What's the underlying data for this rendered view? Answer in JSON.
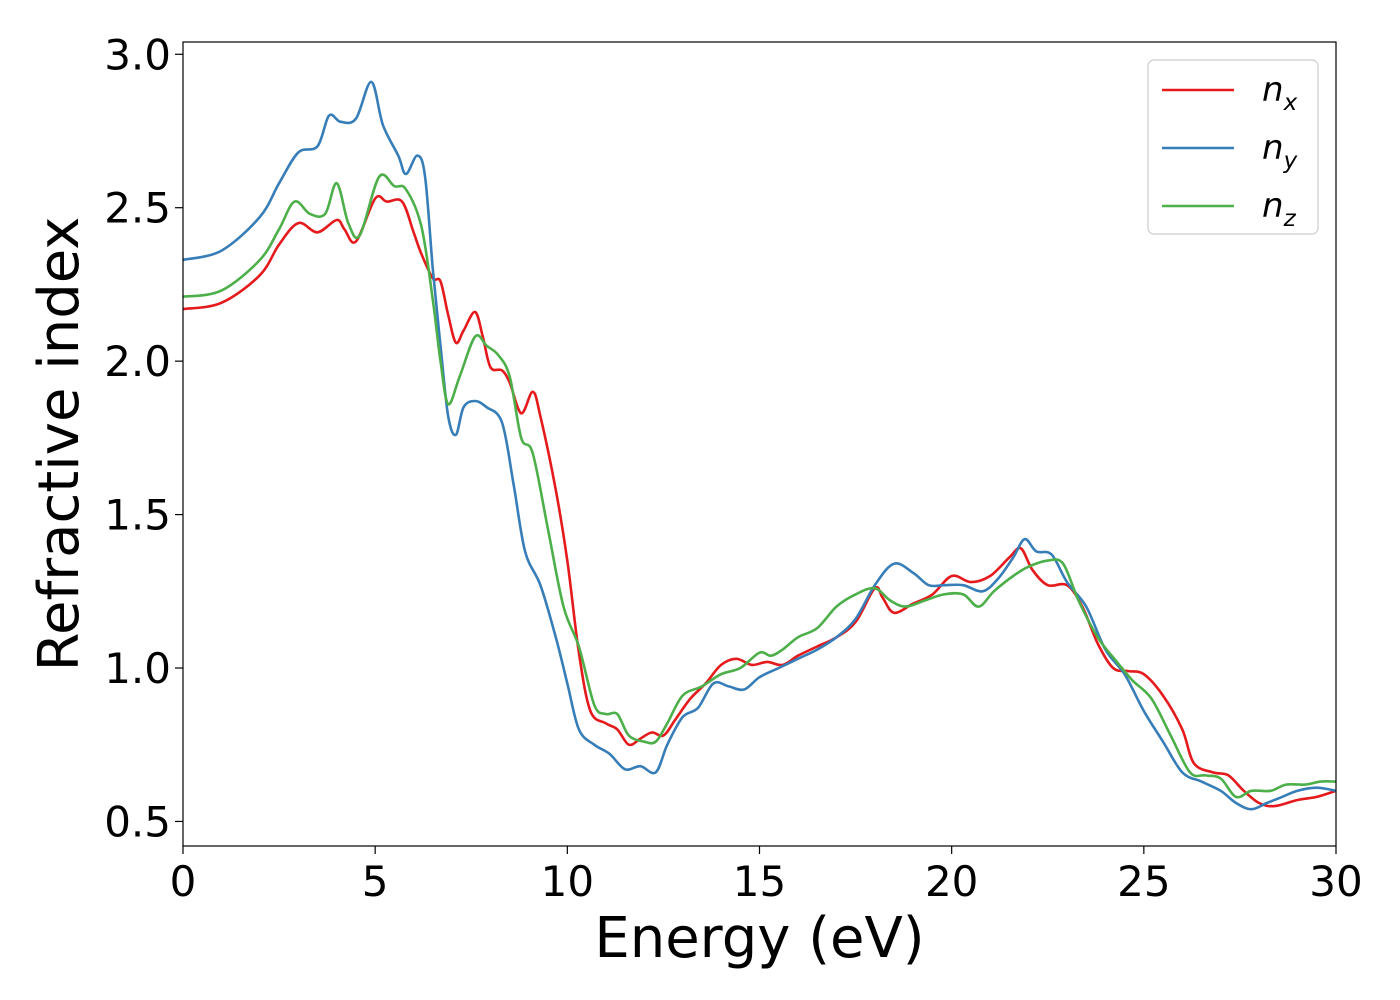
{
  "chart_data": {
    "type": "line",
    "xlabel": "Energy (eV)",
    "ylabel": "Refractive index",
    "xlim": [
      0,
      30
    ],
    "ylim": [
      0.42,
      3.04
    ],
    "xticks": [
      0,
      5,
      10,
      15,
      20,
      25,
      30
    ],
    "xtick_labels": [
      "0",
      "5",
      "10",
      "15",
      "20",
      "25",
      "30"
    ],
    "yticks": [
      0.5,
      1.0,
      1.5,
      2.0,
      2.5,
      3.0
    ],
    "ytick_labels": [
      "0.5",
      "1.0",
      "1.5",
      "2.0",
      "2.5",
      "3.0"
    ],
    "grid": false,
    "legend_position": "top-right",
    "series": [
      {
        "name": "n",
        "subscript": "x",
        "color": "#e41a1c",
        "points": [
          [
            0,
            2.17
          ],
          [
            1,
            2.19
          ],
          [
            2,
            2.28
          ],
          [
            2.5,
            2.38
          ],
          [
            3,
            2.45
          ],
          [
            3.5,
            2.42
          ],
          [
            4,
            2.46
          ],
          [
            4.2,
            2.43
          ],
          [
            4.5,
            2.39
          ],
          [
            5,
            2.53
          ],
          [
            5.3,
            2.52
          ],
          [
            5.7,
            2.52
          ],
          [
            6,
            2.42
          ],
          [
            6.2,
            2.35
          ],
          [
            6.5,
            2.27
          ],
          [
            6.7,
            2.26
          ],
          [
            6.9,
            2.15
          ],
          [
            7.1,
            2.06
          ],
          [
            7.3,
            2.1
          ],
          [
            7.6,
            2.16
          ],
          [
            7.8,
            2.08
          ],
          [
            8,
            1.98
          ],
          [
            8.3,
            1.97
          ],
          [
            8.5,
            1.93
          ],
          [
            8.8,
            1.83
          ],
          [
            9.1,
            1.9
          ],
          [
            9.3,
            1.82
          ],
          [
            9.7,
            1.58
          ],
          [
            10,
            1.35
          ],
          [
            10.3,
            1.05
          ],
          [
            10.6,
            0.86
          ],
          [
            11,
            0.82
          ],
          [
            11.3,
            0.8
          ],
          [
            11.6,
            0.75
          ],
          [
            11.9,
            0.77
          ],
          [
            12.2,
            0.79
          ],
          [
            12.5,
            0.78
          ],
          [
            12.8,
            0.83
          ],
          [
            13.2,
            0.9
          ],
          [
            13.6,
            0.95
          ],
          [
            14,
            1.01
          ],
          [
            14.4,
            1.03
          ],
          [
            14.8,
            1.01
          ],
          [
            15.2,
            1.02
          ],
          [
            15.6,
            1.01
          ],
          [
            16,
            1.04
          ],
          [
            16.5,
            1.07
          ],
          [
            17,
            1.1
          ],
          [
            17.5,
            1.15
          ],
          [
            18,
            1.26
          ],
          [
            18.2,
            1.23
          ],
          [
            18.5,
            1.18
          ],
          [
            19,
            1.21
          ],
          [
            19.5,
            1.24
          ],
          [
            20,
            1.3
          ],
          [
            20.5,
            1.28
          ],
          [
            21,
            1.3
          ],
          [
            21.5,
            1.36
          ],
          [
            21.8,
            1.39
          ],
          [
            22.1,
            1.32
          ],
          [
            22.5,
            1.27
          ],
          [
            23,
            1.27
          ],
          [
            23.4,
            1.2
          ],
          [
            23.8,
            1.08
          ],
          [
            24.2,
            1
          ],
          [
            24.6,
            0.99
          ],
          [
            25,
            0.98
          ],
          [
            25.5,
            0.91
          ],
          [
            26,
            0.8
          ],
          [
            26.3,
            0.69
          ],
          [
            26.8,
            0.66
          ],
          [
            27.2,
            0.65
          ],
          [
            27.6,
            0.6
          ],
          [
            28,
            0.56
          ],
          [
            28.4,
            0.55
          ],
          [
            29,
            0.57
          ],
          [
            29.5,
            0.58
          ],
          [
            30,
            0.6
          ]
        ]
      },
      {
        "name": "n",
        "subscript": "y",
        "color": "#377eb8",
        "points": [
          [
            0,
            2.33
          ],
          [
            1,
            2.36
          ],
          [
            2,
            2.47
          ],
          [
            2.5,
            2.58
          ],
          [
            3,
            2.68
          ],
          [
            3.5,
            2.7
          ],
          [
            3.8,
            2.8
          ],
          [
            4.1,
            2.78
          ],
          [
            4.5,
            2.79
          ],
          [
            4.9,
            2.91
          ],
          [
            5.2,
            2.77
          ],
          [
            5.6,
            2.67
          ],
          [
            5.8,
            2.61
          ],
          [
            6.1,
            2.67
          ],
          [
            6.3,
            2.6
          ],
          [
            6.5,
            2.3
          ],
          [
            6.7,
            2.05
          ],
          [
            6.9,
            1.82
          ],
          [
            7.1,
            1.76
          ],
          [
            7.3,
            1.85
          ],
          [
            7.6,
            1.87
          ],
          [
            7.9,
            1.85
          ],
          [
            8.3,
            1.8
          ],
          [
            8.6,
            1.6
          ],
          [
            8.9,
            1.38
          ],
          [
            9.3,
            1.27
          ],
          [
            9.7,
            1.1
          ],
          [
            10,
            0.95
          ],
          [
            10.3,
            0.8
          ],
          [
            10.7,
            0.75
          ],
          [
            11.1,
            0.72
          ],
          [
            11.5,
            0.67
          ],
          [
            11.9,
            0.68
          ],
          [
            12.3,
            0.66
          ],
          [
            12.6,
            0.75
          ],
          [
            13,
            0.84
          ],
          [
            13.4,
            0.87
          ],
          [
            13.8,
            0.95
          ],
          [
            14.2,
            0.94
          ],
          [
            14.6,
            0.93
          ],
          [
            15,
            0.97
          ],
          [
            15.5,
            1
          ],
          [
            16,
            1.03
          ],
          [
            16.5,
            1.06
          ],
          [
            17,
            1.1
          ],
          [
            17.5,
            1.16
          ],
          [
            18,
            1.27
          ],
          [
            18.5,
            1.34
          ],
          [
            19,
            1.31
          ],
          [
            19.4,
            1.27
          ],
          [
            19.8,
            1.27
          ],
          [
            20.3,
            1.27
          ],
          [
            20.8,
            1.25
          ],
          [
            21.2,
            1.29
          ],
          [
            21.6,
            1.36
          ],
          [
            21.9,
            1.42
          ],
          [
            22.2,
            1.38
          ],
          [
            22.6,
            1.37
          ],
          [
            23,
            1.28
          ],
          [
            23.5,
            1.2
          ],
          [
            24,
            1.06
          ],
          [
            24.5,
            0.98
          ],
          [
            25,
            0.86
          ],
          [
            25.5,
            0.76
          ],
          [
            26,
            0.66
          ],
          [
            26.5,
            0.63
          ],
          [
            27,
            0.6
          ],
          [
            27.4,
            0.56
          ],
          [
            27.8,
            0.54
          ],
          [
            28.2,
            0.56
          ],
          [
            28.6,
            0.58
          ],
          [
            29,
            0.6
          ],
          [
            29.5,
            0.61
          ],
          [
            30,
            0.6
          ]
        ]
      },
      {
        "name": "n",
        "subscript": "z",
        "color": "#4daf4a",
        "points": [
          [
            0,
            2.21
          ],
          [
            1,
            2.23
          ],
          [
            2,
            2.33
          ],
          [
            2.5,
            2.43
          ],
          [
            2.9,
            2.52
          ],
          [
            3.3,
            2.48
          ],
          [
            3.7,
            2.48
          ],
          [
            4,
            2.58
          ],
          [
            4.3,
            2.45
          ],
          [
            4.6,
            2.41
          ],
          [
            5.1,
            2.6
          ],
          [
            5.5,
            2.57
          ],
          [
            5.8,
            2.56
          ],
          [
            6.2,
            2.44
          ],
          [
            6.5,
            2.2
          ],
          [
            6.7,
            2.0
          ],
          [
            6.9,
            1.86
          ],
          [
            7.2,
            1.95
          ],
          [
            7.6,
            2.08
          ],
          [
            7.9,
            2.05
          ],
          [
            8.2,
            2.02
          ],
          [
            8.5,
            1.95
          ],
          [
            8.8,
            1.75
          ],
          [
            9.1,
            1.7
          ],
          [
            9.5,
            1.45
          ],
          [
            9.9,
            1.2
          ],
          [
            10.3,
            1.07
          ],
          [
            10.7,
            0.88
          ],
          [
            11,
            0.85
          ],
          [
            11.3,
            0.85
          ],
          [
            11.6,
            0.78
          ],
          [
            12,
            0.76
          ],
          [
            12.3,
            0.76
          ],
          [
            12.6,
            0.82
          ],
          [
            13,
            0.91
          ],
          [
            13.5,
            0.94
          ],
          [
            14,
            0.98
          ],
          [
            14.5,
            1
          ],
          [
            15,
            1.05
          ],
          [
            15.3,
            1.04
          ],
          [
            15.6,
            1.06
          ],
          [
            16,
            1.1
          ],
          [
            16.5,
            1.13
          ],
          [
            17,
            1.2
          ],
          [
            17.5,
            1.24
          ],
          [
            18,
            1.26
          ],
          [
            18.4,
            1.22
          ],
          [
            18.8,
            1.2
          ],
          [
            19.3,
            1.22
          ],
          [
            19.8,
            1.24
          ],
          [
            20.3,
            1.24
          ],
          [
            20.7,
            1.2
          ],
          [
            21.1,
            1.25
          ],
          [
            21.6,
            1.3
          ],
          [
            22,
            1.33
          ],
          [
            22.5,
            1.35
          ],
          [
            22.9,
            1.34
          ],
          [
            23.3,
            1.22
          ],
          [
            23.8,
            1.1
          ],
          [
            24.3,
            1.02
          ],
          [
            24.7,
            0.96
          ],
          [
            25.2,
            0.9
          ],
          [
            25.7,
            0.78
          ],
          [
            26.2,
            0.66
          ],
          [
            26.6,
            0.65
          ],
          [
            27,
            0.64
          ],
          [
            27.4,
            0.58
          ],
          [
            27.8,
            0.6
          ],
          [
            28.3,
            0.6
          ],
          [
            28.7,
            0.62
          ],
          [
            29.2,
            0.62
          ],
          [
            29.6,
            0.63
          ],
          [
            30,
            0.63
          ]
        ]
      }
    ]
  }
}
